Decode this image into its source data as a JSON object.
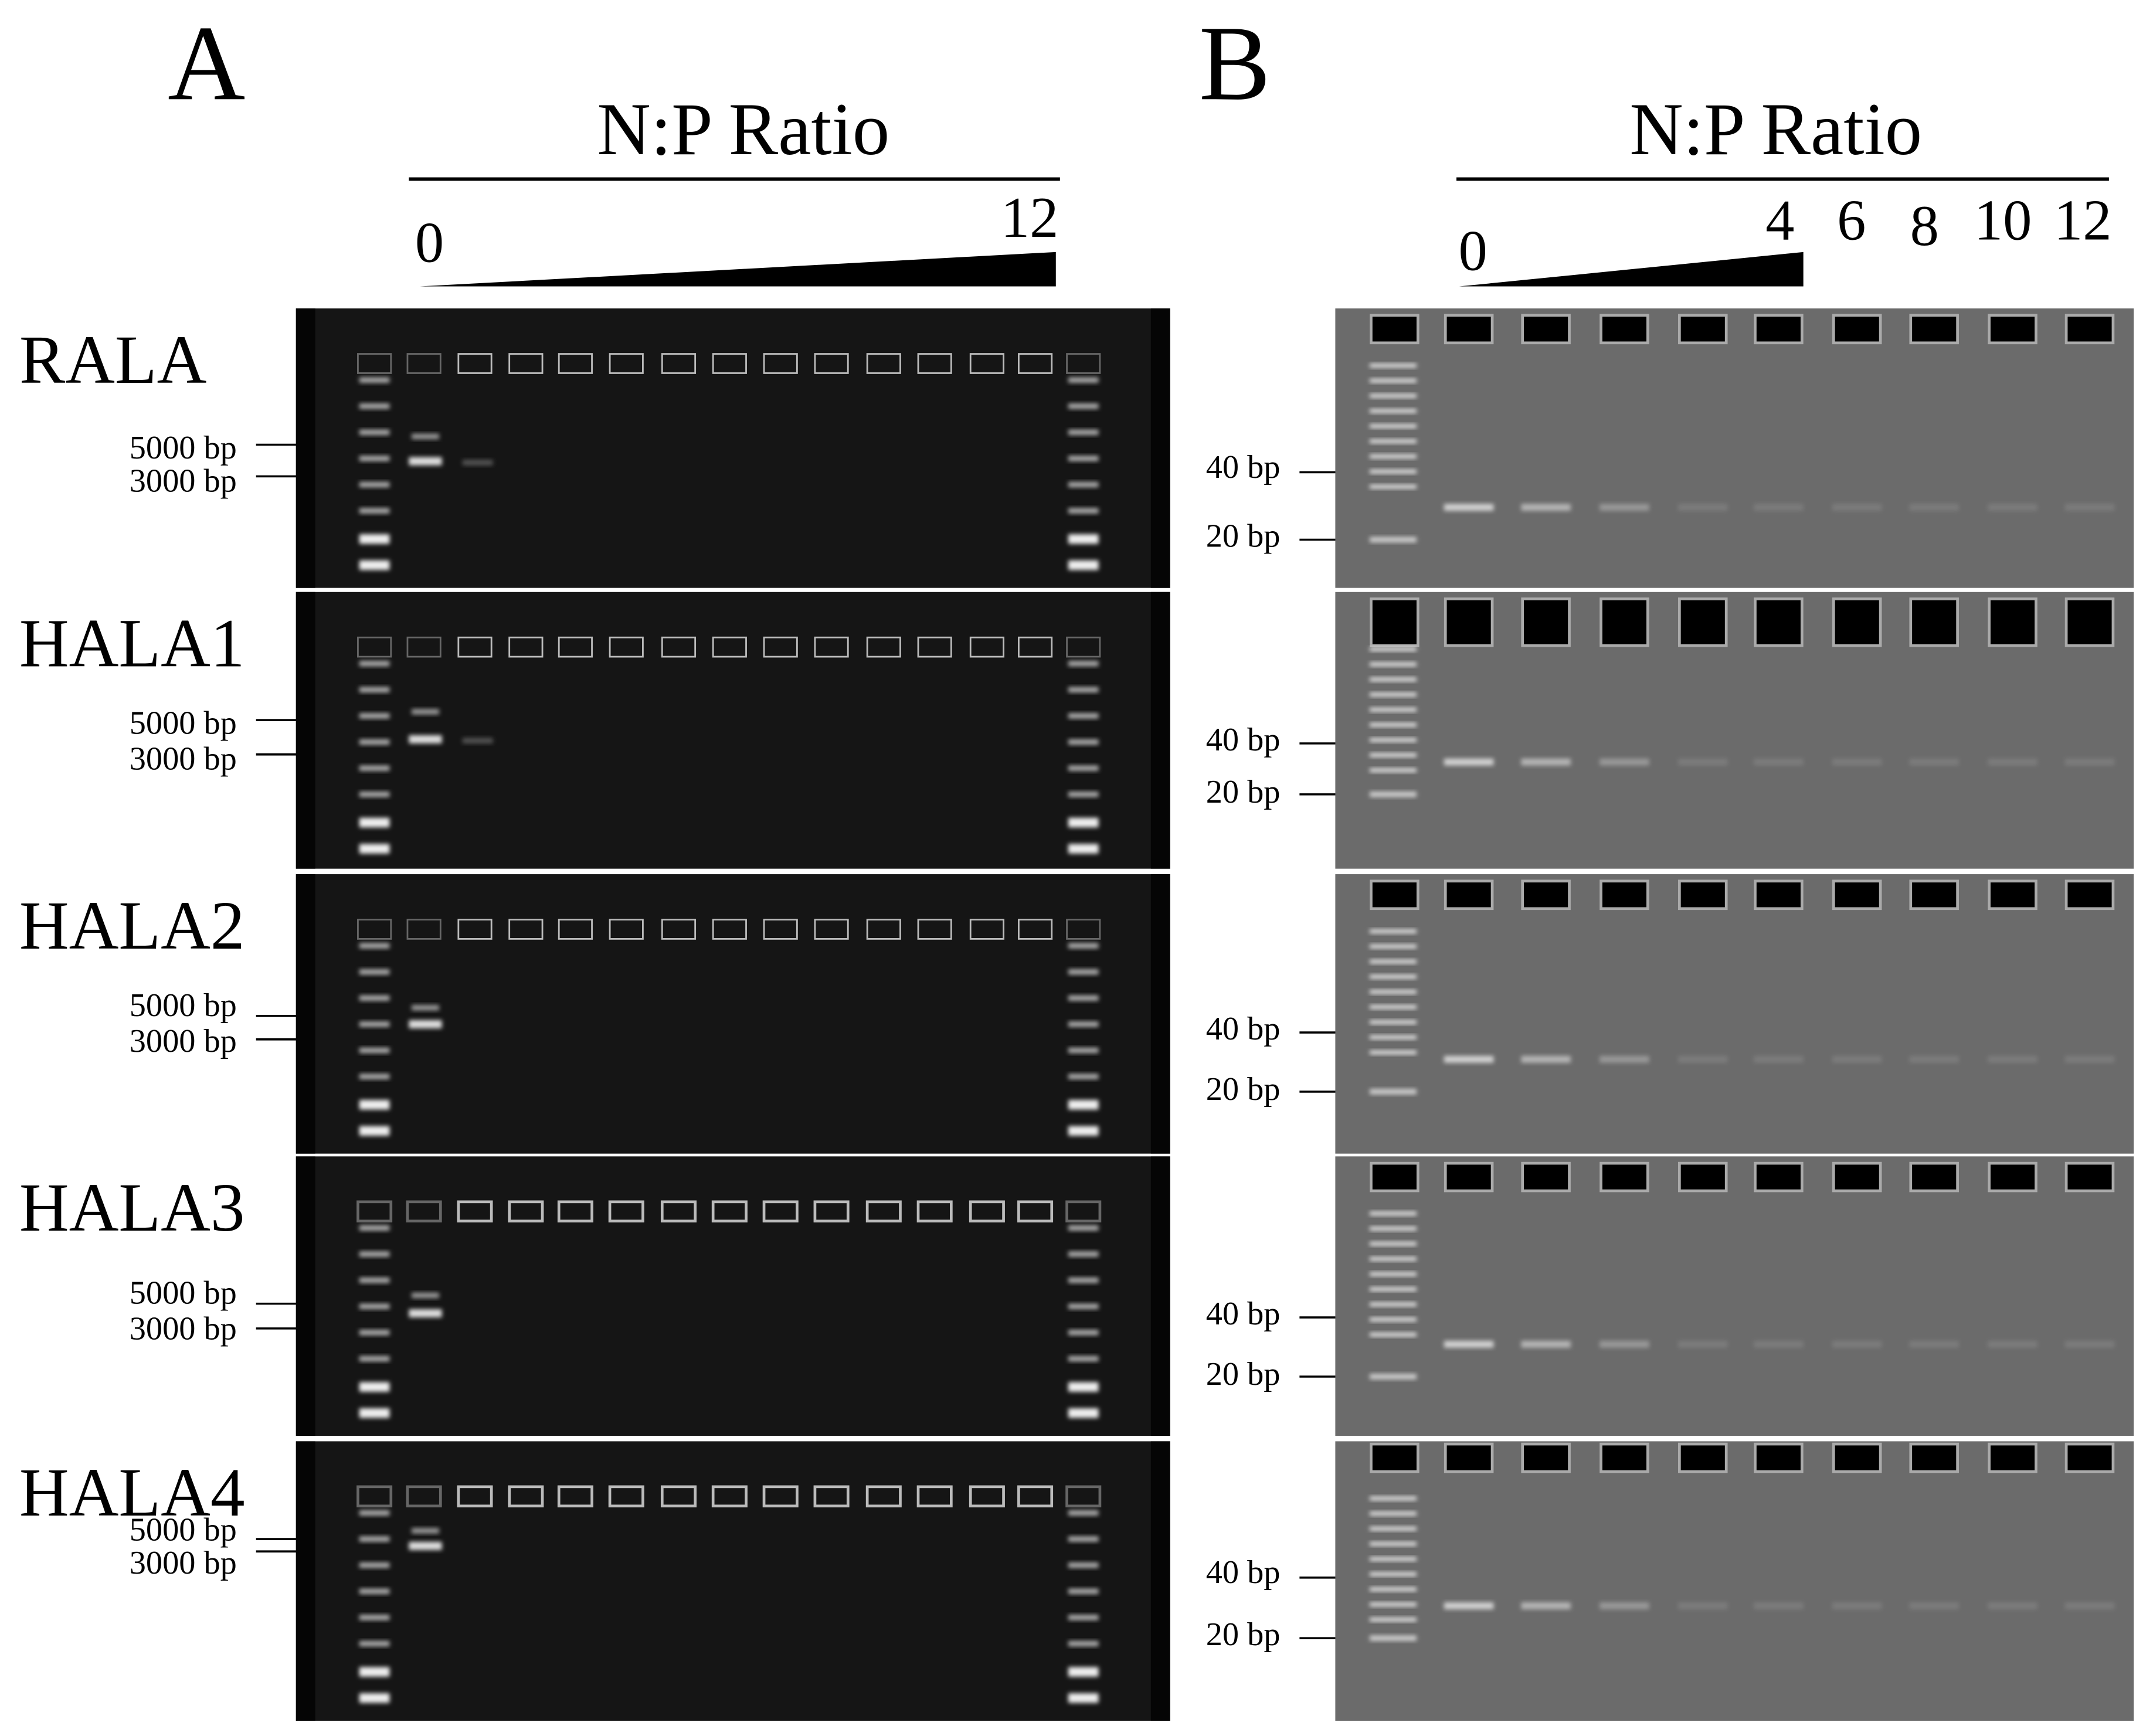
{
  "row_labels": [
    "RALA",
    "HALA1",
    "HALA2",
    "HALA3",
    "HALA4"
  ],
  "panels": [
    {
      "label": "A",
      "title": "N:P Ratio",
      "ratio_ticks": [
        "0",
        "12"
      ],
      "rows": [
        {
          "markers": [
            "5000 bp",
            "3000 bp"
          ]
        },
        {
          "markers": [
            "5000 bp",
            "3000 bp"
          ]
        },
        {
          "markers": [
            "5000 bp",
            "3000 bp"
          ]
        },
        {
          "markers": [
            "5000 bp",
            "3000 bp"
          ]
        },
        {
          "markers": [
            "5000 bp",
            "3000 bp"
          ]
        }
      ]
    },
    {
      "label": "B",
      "title": "N:P Ratio",
      "ratio_ticks": [
        "0",
        "4",
        "6",
        "8",
        "10",
        "12"
      ],
      "rows": [
        {
          "markers": [
            "40 bp",
            "20 bp"
          ]
        },
        {
          "markers": [
            "40 bp",
            "20 bp"
          ]
        },
        {
          "markers": [
            "40 bp",
            "20 bp"
          ]
        },
        {
          "markers": [
            "40 bp",
            "20 bp"
          ]
        },
        {
          "markers": [
            "40 bp",
            "20 bp"
          ]
        }
      ]
    }
  ]
}
